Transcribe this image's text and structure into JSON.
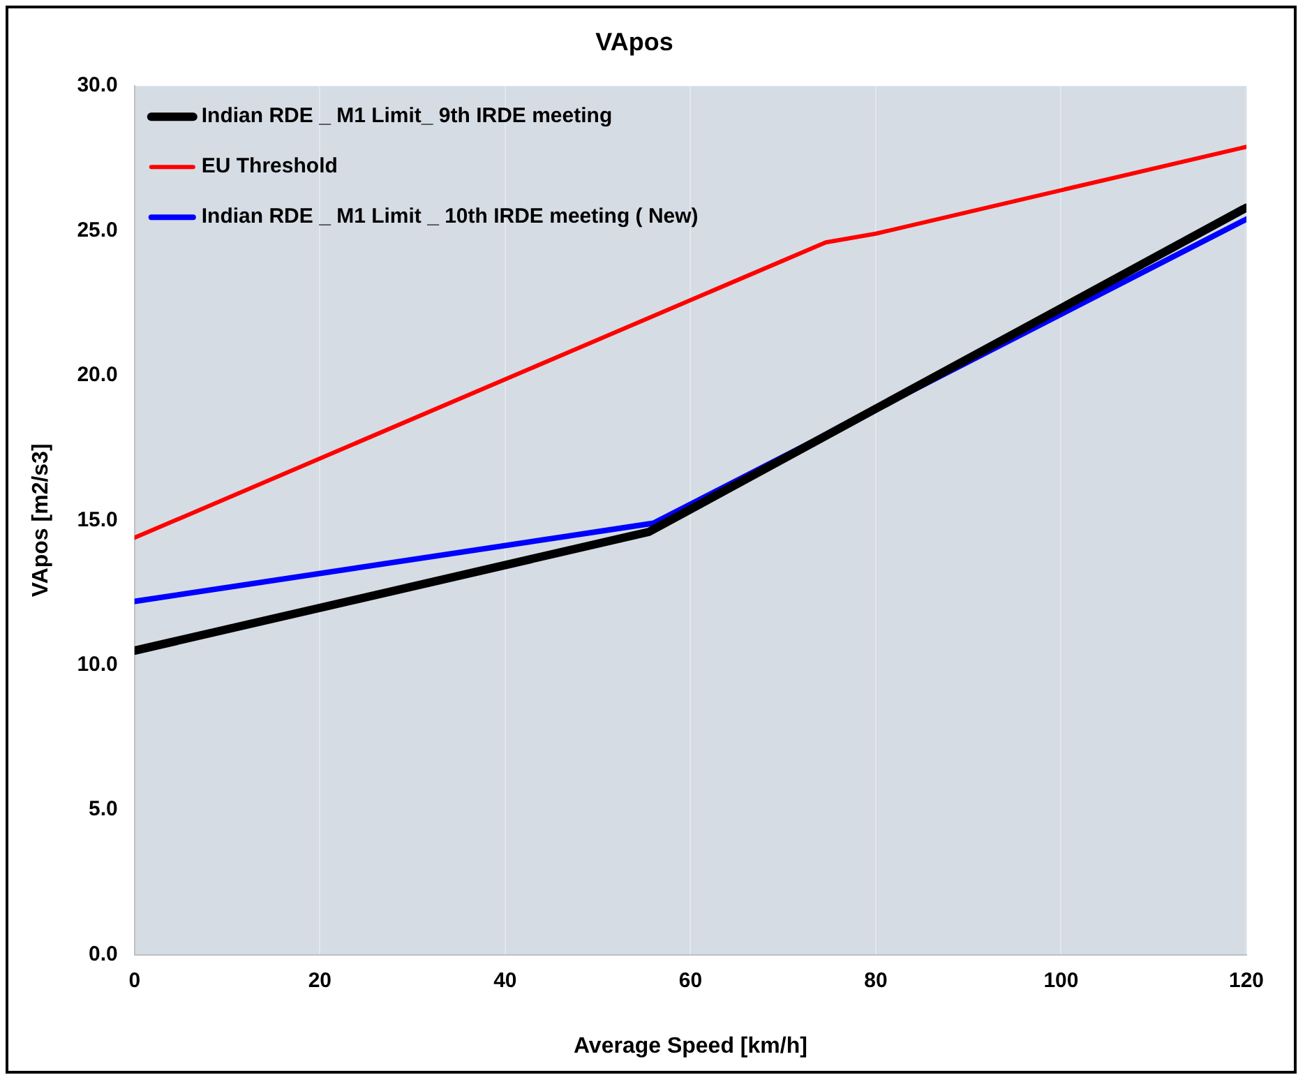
{
  "chart_data": {
    "type": "line",
    "title": "VApos",
    "xlabel": "Average Speed [km/h]",
    "ylabel": "VApos [m2/s3]",
    "xlim": [
      0,
      120
    ],
    "xticks": [
      0,
      20,
      40,
      60,
      80,
      100,
      120
    ],
    "ylim": [
      0,
      30
    ],
    "yticks": [
      {
        "value": 0,
        "label": "0.0"
      },
      {
        "value": 5,
        "label": "5.0"
      },
      {
        "value": 10,
        "label": "10.0"
      },
      {
        "value": 15,
        "label": "15.0"
      },
      {
        "value": 20,
        "label": "20.0"
      },
      {
        "value": 25,
        "label": "25.0"
      },
      {
        "value": 30,
        "label": "30.0"
      }
    ],
    "grid": "x",
    "legend": "top left",
    "marker": "none",
    "line_style": "solid",
    "series": [
      {
        "name": "Indian RDE _ M1 Limit_ 9th IRDE meeting",
        "color": "#000000",
        "x": [
          0,
          55.5,
          120
        ],
        "values": [
          10.5,
          14.6,
          25.8
        ]
      },
      {
        "name": "EU Threshold",
        "color": "#ff0000",
        "x": [
          0,
          74.6,
          80,
          120
        ],
        "values": [
          14.4,
          24.6,
          24.9,
          27.9
        ]
      },
      {
        "name": "Indian RDE _ M1 Limit _ 10th IRDE meeting ( New)",
        "color": "#0000ff",
        "x": [
          0,
          56,
          120
        ],
        "values": [
          12.2,
          14.9,
          25.4
        ]
      }
    ]
  }
}
